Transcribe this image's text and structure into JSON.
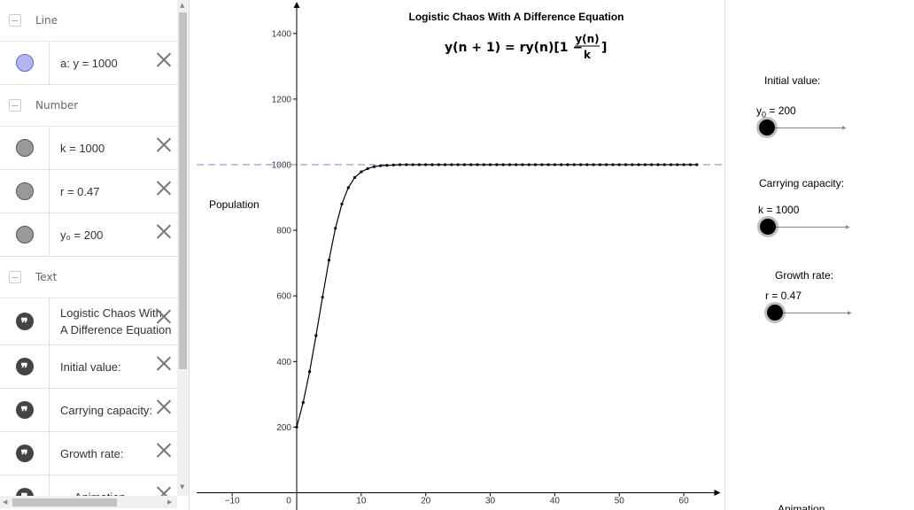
{
  "algebra": {
    "categories": {
      "line": "Line",
      "number": "Number",
      "text": "Text"
    },
    "line_items": [
      {
        "label": "a: y = 1000"
      }
    ],
    "number_items": [
      {
        "label": "k = 1000"
      },
      {
        "label": "r = 0.47"
      },
      {
        "label": "y₀ = 200"
      }
    ],
    "text_items": [
      {
        "line1": "Logistic Chaos With",
        "line2": "A Difference Equation"
      },
      {
        "line1": "Initial value:"
      },
      {
        "line1": "Carrying capacity:"
      },
      {
        "line1": "Growth rate:"
      },
      {
        "line1": "← Animation"
      }
    ]
  },
  "controls": {
    "initial_label": "Initial value:",
    "initial_slider": "y0 = 200",
    "initial_value": 200,
    "capacity_label": "Carrying capacity:",
    "capacity_slider": "k = 1000",
    "capacity_value": 1000,
    "growth_label": "Growth rate:",
    "growth_slider": "r = 0.47",
    "growth_value": 0.47,
    "animation_label": "Animation"
  },
  "chart_data": {
    "type": "scatter",
    "title": "Logistic Chaos With A Difference Equation",
    "formula": "y(n + 1) = ry(n)[1 − y(n)/k]",
    "ylabel": "Population",
    "xlim": [
      -15,
      65
    ],
    "ylim": [
      0,
      1500
    ],
    "x_ticks": [
      -10,
      0,
      10,
      20,
      30,
      40,
      50,
      60
    ],
    "y_ticks": [
      200,
      400,
      600,
      800,
      1000,
      1200,
      1400
    ],
    "reference_line": {
      "name": "a",
      "y": 1000,
      "style": "dashed",
      "color": "#9a9ae0"
    },
    "series_color": "#000000",
    "model": {
      "y0": 200,
      "k": 1000,
      "r": 0.47,
      "n_max": 62
    },
    "x": [
      0,
      1,
      2,
      3,
      4,
      5,
      6,
      7,
      8,
      9,
      10,
      11,
      12,
      13,
      14,
      15,
      16,
      17,
      18,
      19,
      20,
      21,
      22,
      23,
      24,
      25,
      26,
      27,
      28,
      29,
      30,
      31,
      32,
      33,
      34,
      35,
      36,
      37,
      38,
      39,
      40,
      41,
      42,
      43,
      44,
      45,
      46,
      47,
      48,
      49,
      50,
      51,
      52,
      53,
      54,
      55,
      56,
      57,
      58,
      59,
      60,
      61,
      62
    ],
    "y": [
      200,
      275,
      369,
      479,
      596,
      709,
      806,
      880,
      930,
      961,
      978,
      988,
      994,
      997,
      998,
      999,
      1000,
      1000,
      1000,
      1000,
      1000,
      1000,
      1000,
      1000,
      1000,
      1000,
      1000,
      1000,
      1000,
      1000,
      1000,
      1000,
      1000,
      1000,
      1000,
      1000,
      1000,
      1000,
      1000,
      1000,
      1000,
      1000,
      1000,
      1000,
      1000,
      1000,
      1000,
      1000,
      1000,
      1000,
      1000,
      1000,
      1000,
      1000,
      1000,
      1000,
      1000,
      1000,
      1000,
      1000,
      1000,
      1000,
      1000
    ]
  }
}
